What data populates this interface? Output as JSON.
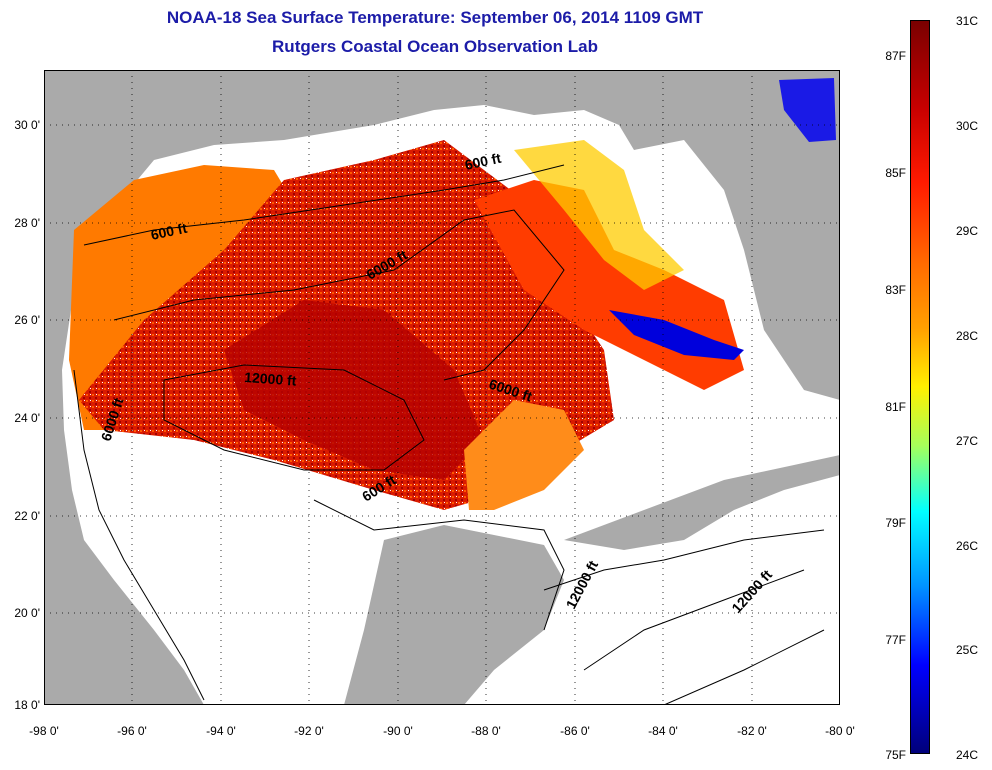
{
  "title": {
    "line1": "NOAA-18 Sea Surface Temperature:  September 06, 2014 1109 GMT",
    "line2": "Rutgers Coastal Ocean Observation Lab"
  },
  "axes": {
    "y_ticks": [
      "30 0'",
      "28 0'",
      "26 0'",
      "24 0'",
      "22 0'",
      "20 0'",
      "18 0'"
    ],
    "x_ticks": [
      "-98 0'",
      "-96 0'",
      "-94 0'",
      "-92 0'",
      "-90 0'",
      "-88 0'",
      "-86 0'",
      "-84 0'",
      "-82 0'",
      "-80 0'"
    ],
    "lat_range": [
      18,
      31
    ],
    "lon_range": [
      -98,
      -80
    ]
  },
  "contour_labels": {
    "c1": "600 ft",
    "c2": "600 ft",
    "c3": "6000 ft",
    "c4": "12000 ft",
    "c5": "6000 ft",
    "c6": "6000 ft",
    "c7": "600 ft",
    "c8": "12000 ft",
    "c9": "12000 ft"
  },
  "colorbar": {
    "fahrenheit": [
      "87F",
      "85F",
      "83F",
      "81F",
      "79F",
      "77F",
      "75F"
    ],
    "celsius": [
      "31C",
      "30C",
      "29C",
      "28C",
      "27C",
      "26C",
      "25C",
      "24C"
    ]
  },
  "colors": {
    "land": "#aaaaaa",
    "no_data": "#ffffff",
    "title": "#1c1ca8",
    "sst_hot": "#b40000",
    "sst_warm": "#ff3200",
    "sst_mid": "#ff8c00",
    "sst_cool": "#0000dc"
  }
}
